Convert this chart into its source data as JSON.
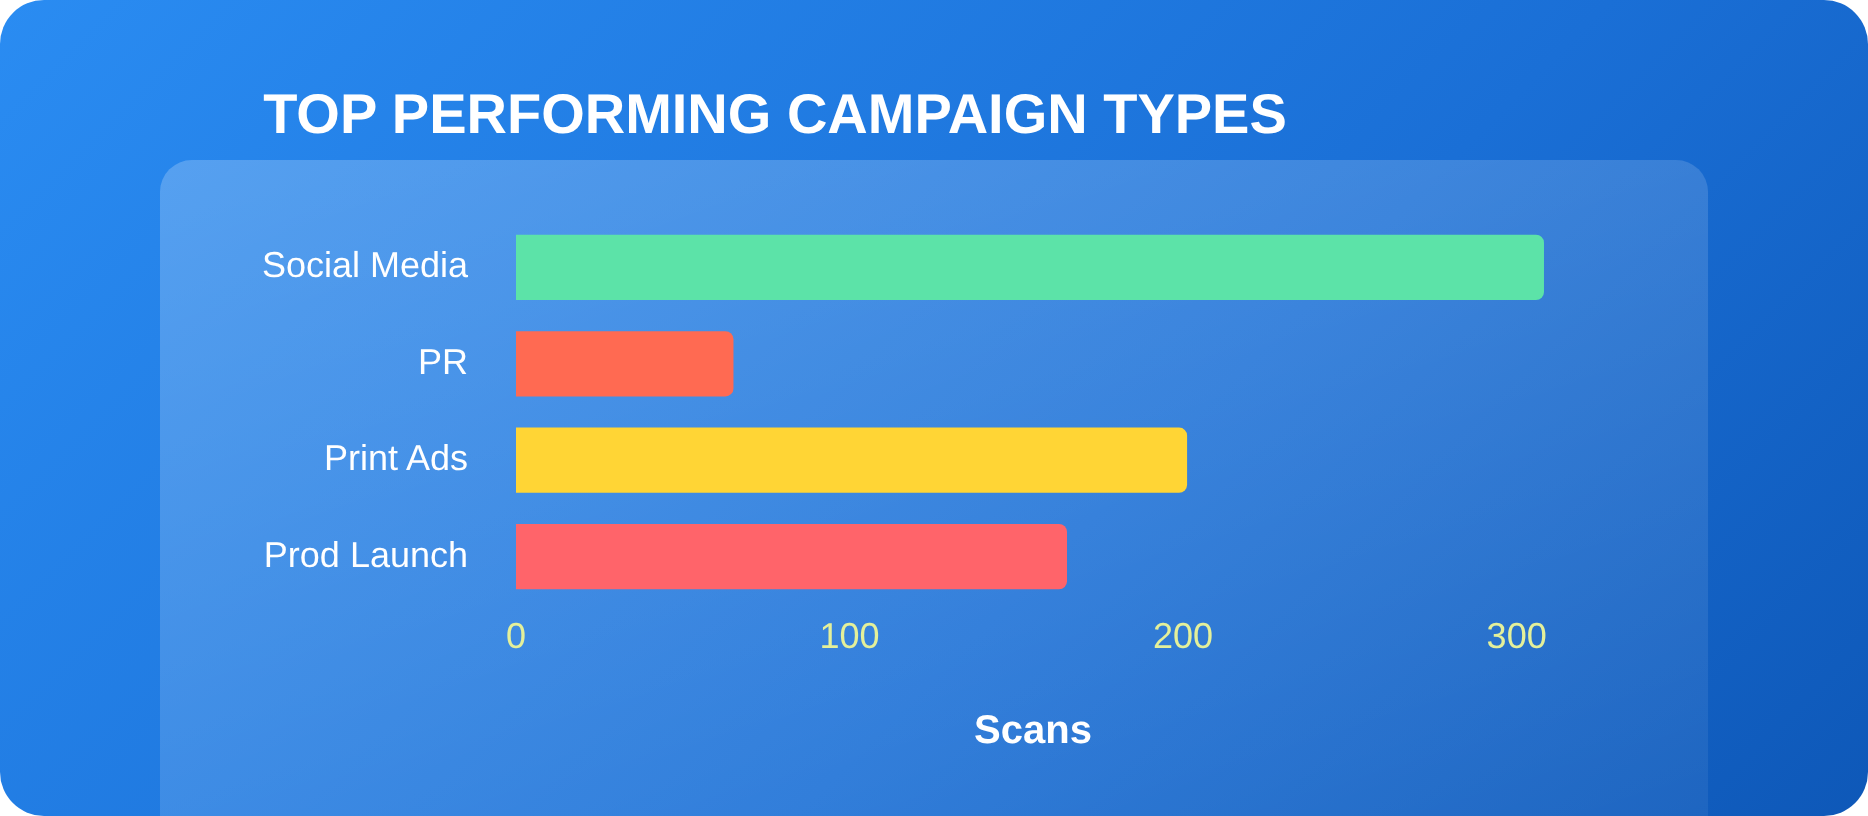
{
  "chart_data": {
    "type": "bar",
    "orientation": "horizontal",
    "title": "TOP PERFORMING CAMPAIGN TYPES",
    "xlabel": "Scans",
    "categories": [
      "Social Media",
      "PR",
      "Print Ads",
      "Prod Launch"
    ],
    "values": [
      308,
      65,
      201,
      165
    ],
    "colors": [
      "#5ce3a8",
      "#ff6a52",
      "#ffd535",
      "#ff646a"
    ],
    "xlim": [
      0,
      310
    ],
    "xticks": [
      0,
      100,
      200,
      300
    ],
    "grid": false,
    "legend": false
  }
}
